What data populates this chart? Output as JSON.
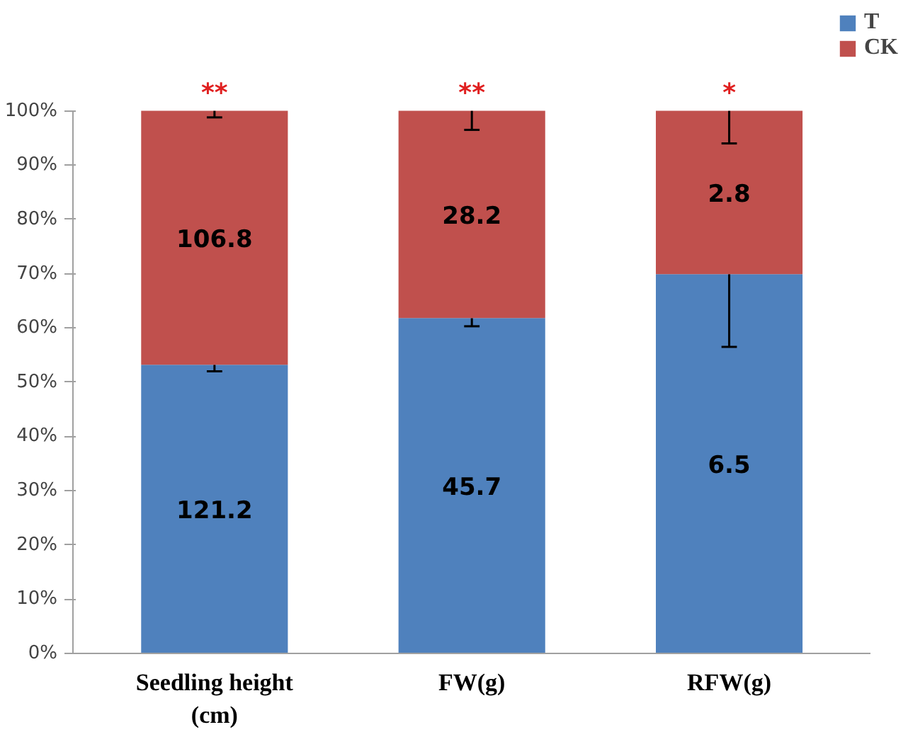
{
  "chart_data": {
    "type": "bar",
    "stacked": true,
    "categories": [
      "Seedling height\n(cm)",
      "FW(g)",
      "RFW(g)"
    ],
    "series": [
      {
        "name": "T",
        "color": "#4f81bd",
        "values": [
          53.2,
          61.8,
          69.9
        ],
        "errors": [
          [
            52.0,
            53.2
          ],
          [
            60.3,
            61.8
          ],
          [
            56.5,
            69.9
          ]
        ]
      },
      {
        "name": "CK",
        "color": "#c0504d",
        "values": [
          46.8,
          38.2,
          30.1
        ],
        "errors": [
          [
            98.8,
            100
          ],
          [
            96.5,
            100
          ],
          [
            94.0,
            100
          ]
        ]
      }
    ],
    "ylim": [
      0,
      100
    ],
    "yticks": [
      {
        "value": 0,
        "label": "0%"
      },
      {
        "value": 10,
        "label": "10%"
      },
      {
        "value": 20,
        "label": "20%"
      },
      {
        "value": 30,
        "label": "30%"
      },
      {
        "value": 40,
        "label": "40%"
      },
      {
        "value": 50,
        "label": "50%"
      },
      {
        "value": 60,
        "label": "60%"
      },
      {
        "value": 70,
        "label": "70%"
      },
      {
        "value": 80,
        "label": "80%"
      },
      {
        "value": 90,
        "label": "90%"
      },
      {
        "value": 100,
        "label": "100%"
      }
    ],
    "annotations": [
      {
        "text": "**",
        "x": "Seedling height\n(cm)",
        "y": 100
      },
      {
        "text": "**",
        "x": "FW(g)",
        "y": 100
      },
      {
        "text": "*",
        "x": "RFW(g)",
        "y": 100
      },
      "121.2",
      "45.7",
      "6.5",
      "106.8",
      "28.2",
      "2.8"
    ],
    "grid": false,
    "legend": "top right"
  }
}
